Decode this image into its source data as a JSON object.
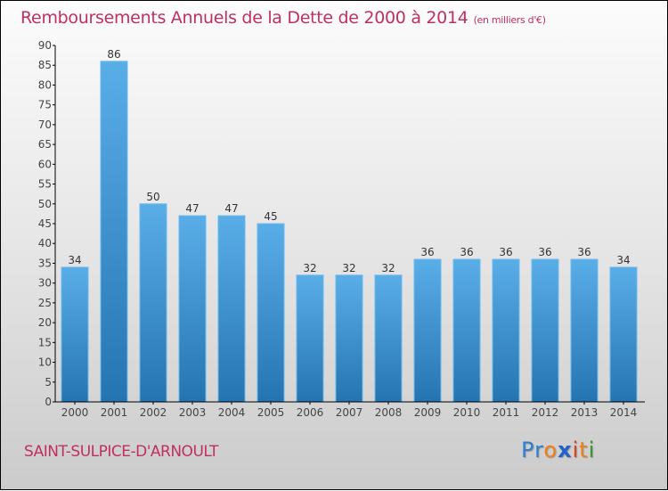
{
  "header": {
    "title": "Remboursements Annuels de la Dette de 2000 à 2014",
    "subtitle": "(en milliers d'€)"
  },
  "footer": {
    "commune": "SAINT-SULPICE-D'ARNOULT",
    "logo": {
      "letters": [
        {
          "char": "P",
          "color": "#2f7fd0"
        },
        {
          "char": "r",
          "color": "#2f7fd0"
        },
        {
          "char": "o",
          "color": "#f07f1a"
        },
        {
          "char": "x",
          "color": "#1f63c8"
        },
        {
          "char": "i",
          "color": "#e0401a"
        },
        {
          "char": "t",
          "color": "#f07f1a"
        },
        {
          "char": "i",
          "color": "#3a9a2a"
        }
      ]
    }
  },
  "colors": {
    "title": "#c0305f",
    "bar_top": "#5aaee8",
    "bar_bottom": "#2474b2"
  },
  "chart_data": {
    "type": "bar",
    "title": "Remboursements Annuels de la Dette de 2000 à 2014 (en milliers d'€)",
    "xlabel": "",
    "ylabel": "",
    "categories": [
      "2000",
      "2001",
      "2002",
      "2003",
      "2004",
      "2005",
      "2006",
      "2007",
      "2008",
      "2009",
      "2010",
      "2011",
      "2012",
      "2013",
      "2014"
    ],
    "values": [
      34,
      86,
      50,
      47,
      47,
      45,
      32,
      32,
      32,
      36,
      36,
      36,
      36,
      36,
      34
    ],
    "ylim": [
      0,
      90
    ],
    "yticks": [
      0,
      5,
      10,
      15,
      20,
      25,
      30,
      35,
      40,
      45,
      50,
      55,
      60,
      65,
      70,
      75,
      80,
      85,
      90
    ],
    "grid": false,
    "legend": "none"
  }
}
